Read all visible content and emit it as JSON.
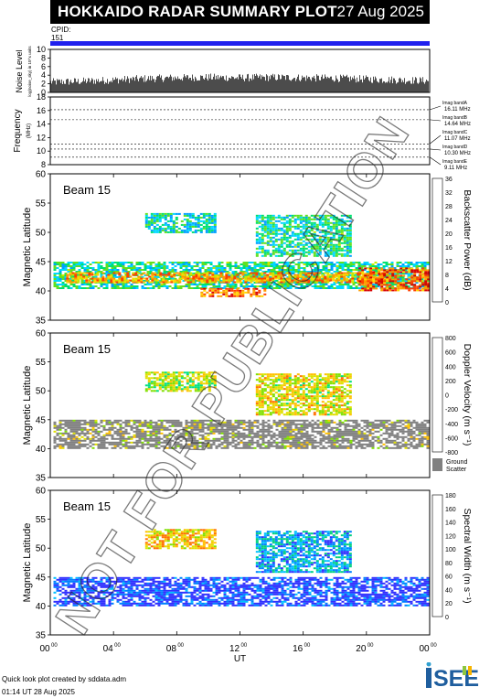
{
  "header": {
    "title": "HOKKAIDO RADAR SUMMARY PLOT",
    "date": "27 Aug 2025",
    "cpid_label": "CPID:",
    "cpid_value": "151"
  },
  "footer": {
    "credit": "Quick look plot created by sddata.adm",
    "created": "01:14 UT 28 Aug 2025",
    "logo_text": "ISEE"
  },
  "watermark": "NOT FOR PUBLICATION",
  "colors": {
    "cpid_bar": "#2020ee",
    "ground_scatter": "#808080",
    "power_scale": [
      "#1a1aff",
      "#00a0ff",
      "#00d8ff",
      "#00e070",
      "#60e020",
      "#c8e800",
      "#ffd700",
      "#ff9a00",
      "#ff4000",
      "#d80000"
    ],
    "velocity_scale": [
      "#2020ff",
      "#0080ff",
      "#00c8ff",
      "#00e080",
      "#80e000",
      "#e0e000",
      "#ffc000",
      "#ff7000",
      "#ff2000",
      "#d00000"
    ],
    "width_scale": [
      "#3030ff",
      "#0080ff",
      "#00c0ff",
      "#00d080",
      "#80e000",
      "#e0e000",
      "#ffc000",
      "#ff7000",
      "#ff2000",
      "#d00000"
    ]
  },
  "chart_data": [
    {
      "type": "area",
      "panel": "noise",
      "ylabel": "Noise Level",
      "ylabel_sub": "log(noise_sky) in 10^x units",
      "ylim": [
        0,
        10
      ],
      "yticks": [
        0,
        2,
        4,
        6,
        8,
        10
      ],
      "x": [
        0,
        2,
        4,
        6,
        8,
        10,
        12,
        14,
        16,
        18,
        20,
        22,
        24
      ],
      "values": [
        2.4,
        2.6,
        2.9,
        3.2,
        3.4,
        3.5,
        3.4,
        3.5,
        3.4,
        3.3,
        3.1,
        2.9,
        2.7
      ]
    },
    {
      "type": "line",
      "panel": "frequency",
      "ylabel": "Frequency",
      "yunit": "(MHz)",
      "ylim": [
        8,
        18
      ],
      "yticks": [
        8,
        10,
        12,
        14,
        16,
        18
      ],
      "series": [
        {
          "name": "Imag bandA 16.11 MHz",
          "value": 16.11
        },
        {
          "name": "Imag bandB 14.64 MHz",
          "value": 14.64
        },
        {
          "name": "Imag bandC 11.07 MHz",
          "value": 11.07
        },
        {
          "name": "Imag bandD 10.30 MHz",
          "value": 10.3
        },
        {
          "name": "Imag bandE 9.11 MHz",
          "value": 9.11
        }
      ],
      "legend_lines": [
        [
          "Imag bandA",
          "16.11 MHz"
        ],
        [
          "Imag bandB",
          "14.64 MHz"
        ],
        [
          "Imag bandC",
          "11.07 MHz"
        ],
        [
          "Imag bandD",
          "10.30 MHz"
        ],
        [
          "Imag bandE",
          "9.11 MHz"
        ]
      ]
    },
    {
      "type": "heatmap",
      "panel": "power",
      "beam": "Beam 15",
      "ylabel": "Magnetic Latitude",
      "ylim": [
        35,
        60
      ],
      "yticks": [
        35,
        40,
        45,
        50,
        55,
        60
      ],
      "colorbar_label": "Backscatter Power (dB)",
      "colorbar_range": [
        0,
        36
      ],
      "colorbar_ticks": [
        0,
        4,
        8,
        12,
        16,
        20,
        24,
        28,
        32,
        36
      ],
      "regions": [
        {
          "t0": 0.2,
          "t1": 23.9,
          "lat0": 40.5,
          "lat1": 45.0,
          "value": 12
        },
        {
          "t0": 1.0,
          "t1": 21.0,
          "lat0": 41.6,
          "lat1": 43.2,
          "value": 26
        },
        {
          "t0": 19.5,
          "t1": 23.9,
          "lat0": 40.0,
          "lat1": 44.0,
          "value": 30
        },
        {
          "t0": 6.0,
          "t1": 10.5,
          "lat0": 50.0,
          "lat1": 53.3,
          "value": 10
        },
        {
          "t0": 13.0,
          "t1": 19.0,
          "lat0": 46.0,
          "lat1": 53.0,
          "value": 12
        },
        {
          "t0": 9.5,
          "t1": 13.5,
          "lat0": 39.0,
          "lat1": 40.5,
          "value": 28
        }
      ]
    },
    {
      "type": "heatmap",
      "panel": "velocity",
      "beam": "Beam 15",
      "ylabel": "Magnetic Latitude",
      "ylim": [
        35,
        60
      ],
      "yticks": [
        35,
        40,
        45,
        50,
        55,
        60
      ],
      "colorbar_label": "Doppler Velocity (m s⁻¹)",
      "colorbar_range": [
        -800,
        800
      ],
      "colorbar_ticks": [
        -800,
        -600,
        -400,
        -200,
        0,
        200,
        400,
        600,
        800
      ],
      "ground_scatter_label": [
        "Ground",
        "Scatter"
      ],
      "regions": [
        {
          "t0": 0.2,
          "t1": 23.9,
          "lat0": 40.0,
          "lat1": 45.0,
          "value": "ground"
        },
        {
          "t0": 6.0,
          "t1": 10.5,
          "lat0": 50.0,
          "lat1": 53.3,
          "value": 0
        },
        {
          "t0": 13.0,
          "t1": 19.0,
          "lat0": 46.0,
          "lat1": 53.0,
          "value": 100
        }
      ]
    },
    {
      "type": "heatmap",
      "panel": "width",
      "beam": "Beam 15",
      "ylabel": "Magnetic Latitude",
      "ylim": [
        35,
        60
      ],
      "yticks": [
        35,
        40,
        45,
        50,
        55,
        60
      ],
      "colorbar_label": "Spectral Width (m s⁻¹)",
      "colorbar_range": [
        0,
        180
      ],
      "colorbar_ticks": [
        0,
        20,
        40,
        60,
        80,
        100,
        120,
        140,
        160,
        180
      ],
      "regions": [
        {
          "t0": 0.2,
          "t1": 23.9,
          "lat0": 40.0,
          "lat1": 45.0,
          "value": 10
        },
        {
          "t0": 6.0,
          "t1": 10.5,
          "lat0": 50.0,
          "lat1": 53.3,
          "value": 110
        },
        {
          "t0": 13.0,
          "t1": 19.0,
          "lat0": 46.0,
          "lat1": 53.0,
          "value": 40
        }
      ]
    }
  ],
  "time_axis": {
    "label": "UT",
    "range": [
      0,
      24
    ],
    "ticks": [
      {
        "hour": 0,
        "label": "00",
        "sup": "00"
      },
      {
        "hour": 4,
        "label": "04",
        "sup": "00"
      },
      {
        "hour": 8,
        "label": "08",
        "sup": "00"
      },
      {
        "hour": 12,
        "label": "12",
        "sup": "00"
      },
      {
        "hour": 16,
        "label": "16",
        "sup": "00"
      },
      {
        "hour": 20,
        "label": "20",
        "sup": "00"
      },
      {
        "hour": 24,
        "label": "00",
        "sup": "00"
      }
    ]
  }
}
